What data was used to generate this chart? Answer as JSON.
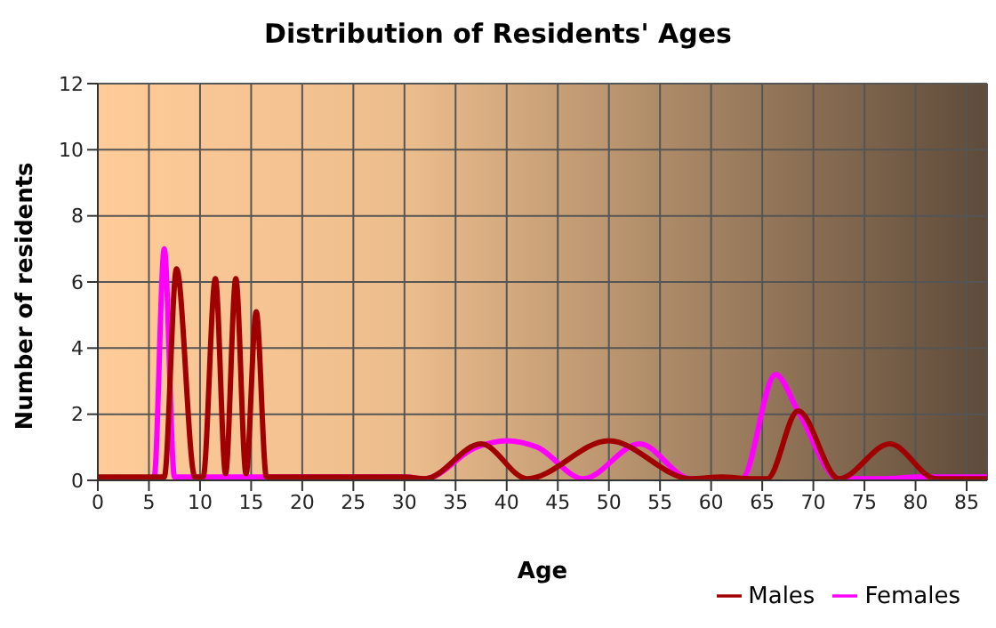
{
  "chart_data": {
    "type": "line",
    "title": "Distribution of Residents' Ages",
    "xlabel": "Age",
    "ylabel": "Number of residents",
    "xlim": [
      0,
      87
    ],
    "xticks": [
      0,
      5,
      10,
      15,
      20,
      25,
      30,
      35,
      40,
      45,
      50,
      55,
      60,
      65,
      70,
      75,
      80,
      85
    ],
    "ylim": [
      0,
      12
    ],
    "yticks": [
      0,
      2,
      4,
      6,
      8,
      10,
      12
    ],
    "grid": true,
    "legend": "bottom right",
    "marker": "none",
    "line_style": "solid",
    "series": [
      {
        "name": "Males",
        "color": "#a00000",
        "x": [
          0,
          5.5,
          6.5,
          7.7,
          9.5,
          10.3,
          11.5,
          12.5,
          13.5,
          14.5,
          15.5,
          16.5,
          30,
          32,
          37.5,
          42,
          50,
          58,
          61,
          64,
          65.5,
          68.5,
          72.5,
          77.5,
          82,
          87
        ],
        "values": [
          0.1,
          0.1,
          0.1,
          6.4,
          0.1,
          0.1,
          6.1,
          0.2,
          6.1,
          0.2,
          5.1,
          0.1,
          0.1,
          0.05,
          1.1,
          0.05,
          1.2,
          0.05,
          0.1,
          0.05,
          0.05,
          2.1,
          0.05,
          1.1,
          0.05,
          0.05
        ]
      },
      {
        "name": "Females",
        "color": "#ff00ff",
        "x": [
          0,
          5.5,
          6.5,
          7.5,
          16,
          30,
          32,
          37,
          40,
          43,
          47.5,
          53,
          58,
          63,
          66.3,
          68.5,
          72.5,
          77,
          80,
          87
        ],
        "values": [
          0.05,
          0.05,
          7.0,
          0.1,
          0.1,
          0.1,
          0.05,
          1.0,
          1.2,
          1.0,
          0.05,
          1.1,
          0.05,
          0.05,
          3.2,
          2.1,
          0.05,
          0.05,
          0.1,
          0.1
        ]
      }
    ]
  }
}
